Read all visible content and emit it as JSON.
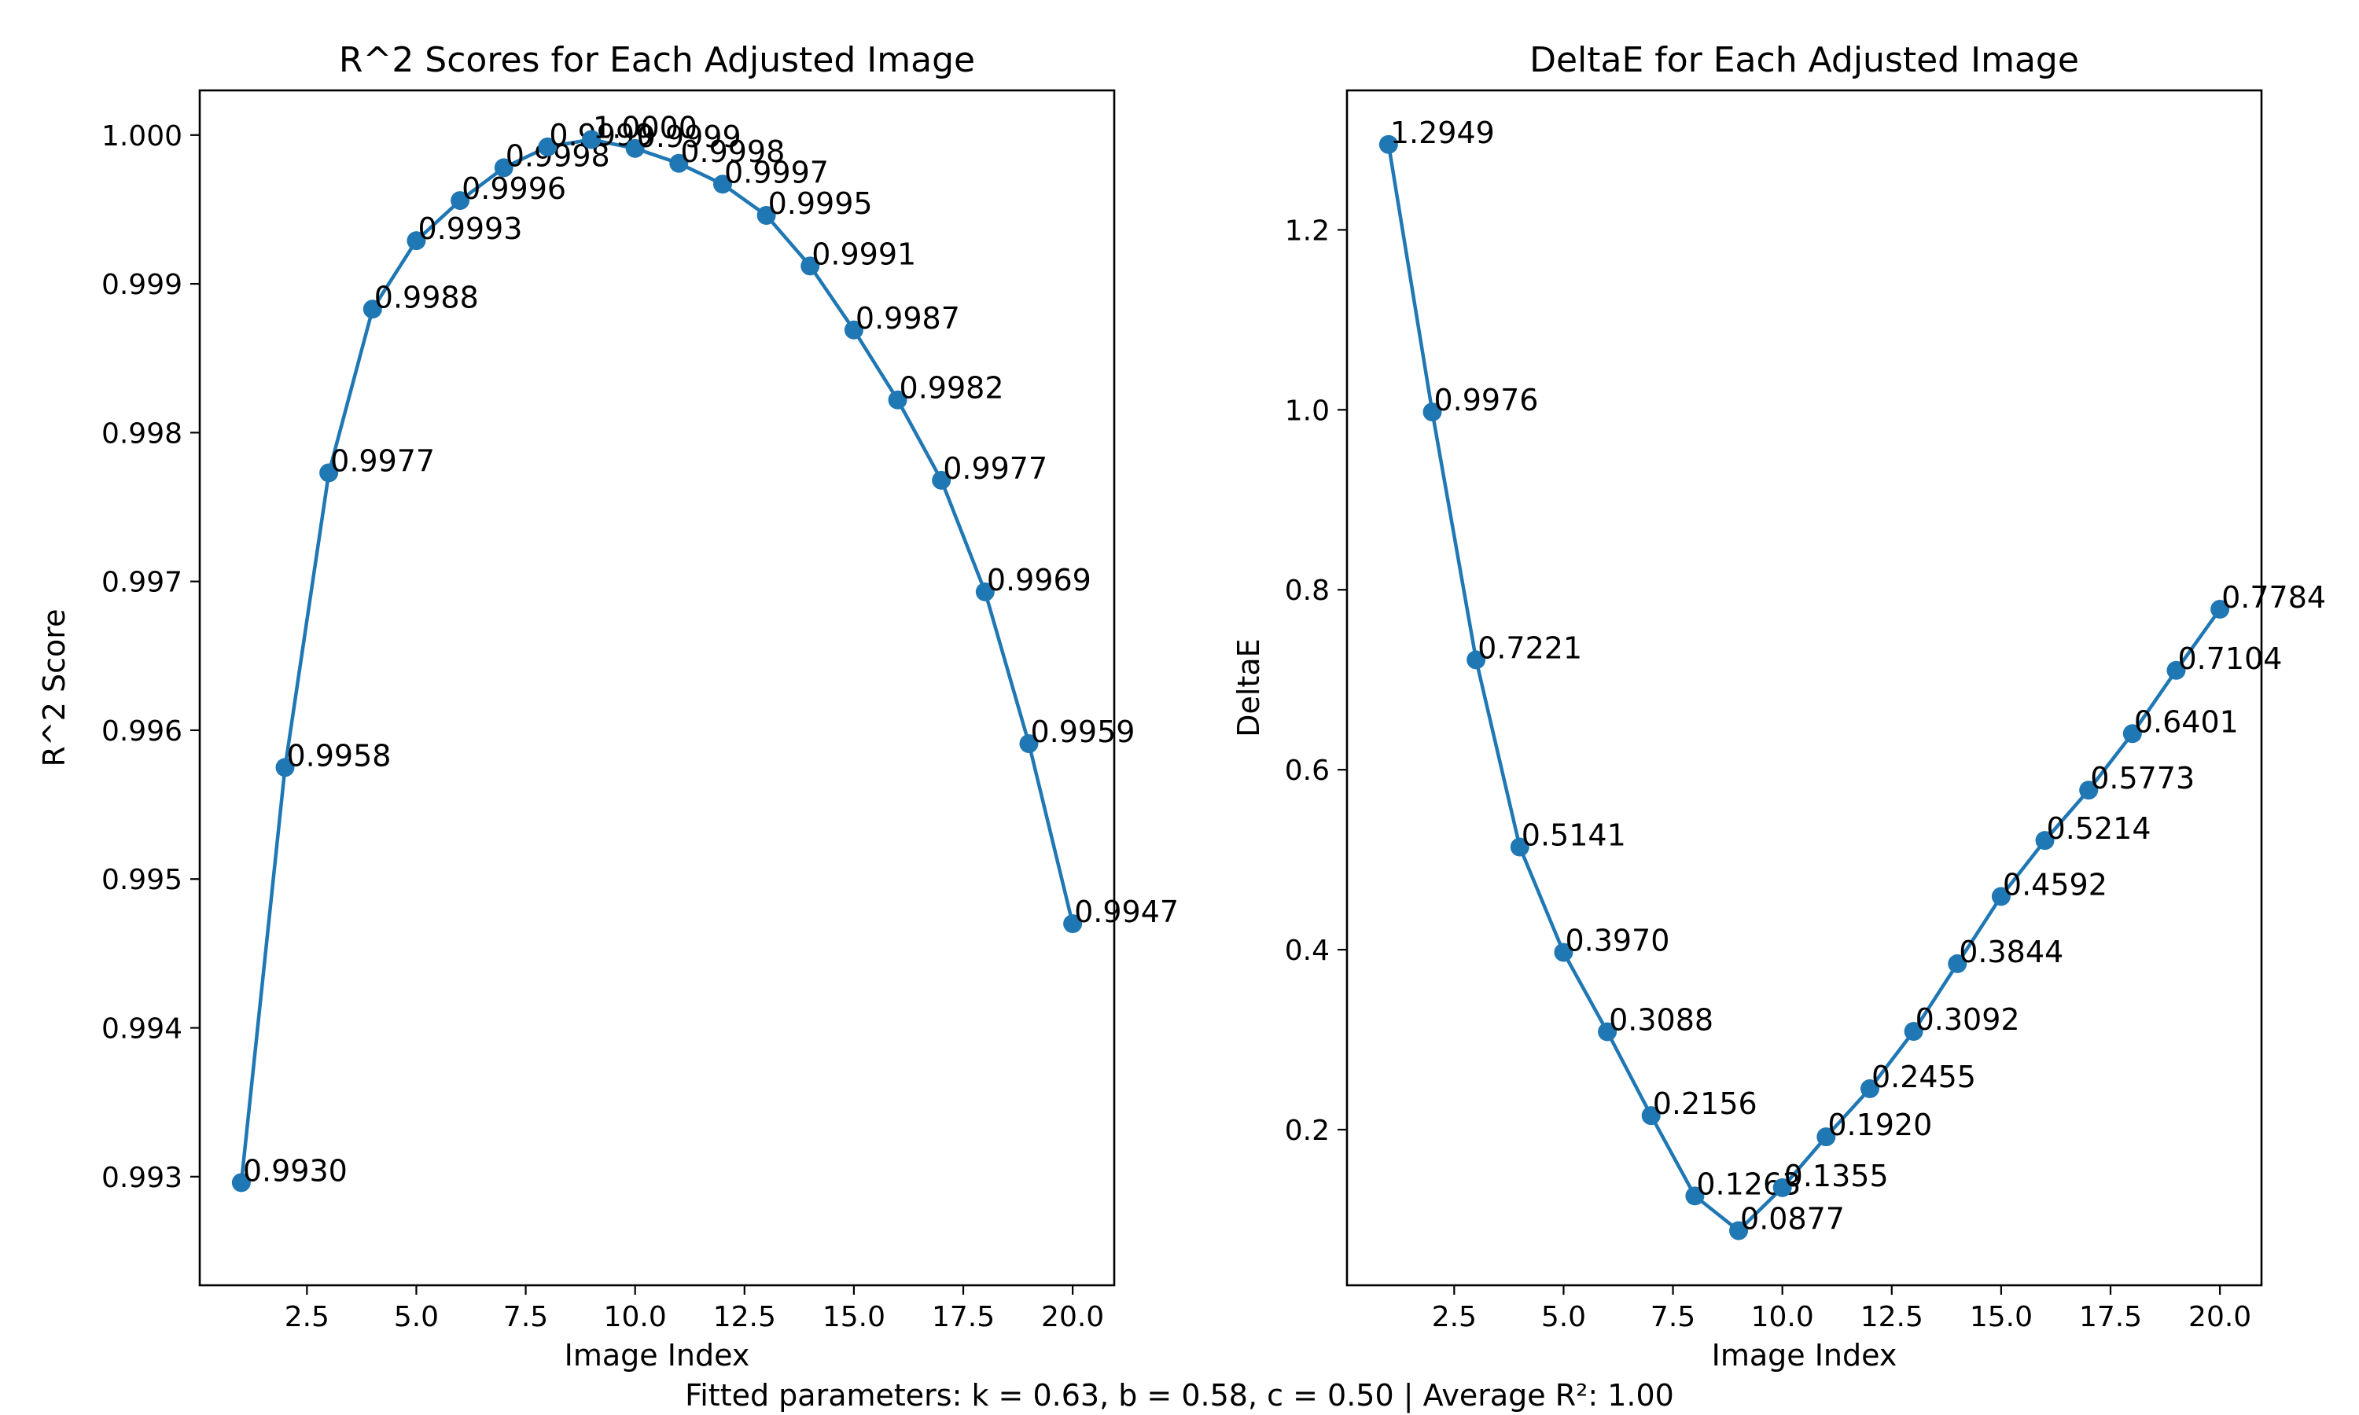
{
  "footer": "Fitted parameters: k = 0.63, b = 0.58, c = 0.50 | Average R²: 1.00",
  "colors": {
    "series": "#1f77b4"
  },
  "chart_data": [
    {
      "type": "line",
      "title": "R^2 Scores for Each Adjusted Image",
      "xlabel": "Image Index",
      "ylabel": "R^2 Score",
      "xlim": [
        0.05,
        20.95
      ],
      "ylim": [
        0.99227,
        1.0003
      ],
      "xticks": [
        2.5,
        5.0,
        7.5,
        10.0,
        12.5,
        15.0,
        17.5,
        20.0
      ],
      "xtick_labels": [
        "2.5",
        "5.0",
        "7.5",
        "10.0",
        "12.5",
        "15.0",
        "17.5",
        "20.0"
      ],
      "yticks": [
        0.993,
        0.994,
        0.995,
        0.996,
        0.997,
        0.998,
        0.999,
        1.0
      ],
      "ytick_labels": [
        "0.993",
        "0.994",
        "0.995",
        "0.996",
        "0.997",
        "0.998",
        "0.999",
        "1.000"
      ],
      "grid": false,
      "marker": "circle",
      "x": [
        1,
        2,
        3,
        4,
        5,
        6,
        7,
        8,
        9,
        10,
        11,
        12,
        13,
        14,
        15,
        16,
        17,
        18,
        19,
        20
      ],
      "values": [
        0.99296,
        0.99575,
        0.99773,
        0.99883,
        0.99929,
        0.99956,
        0.99978,
        0.99992,
        0.99997,
        0.99991,
        0.99981,
        0.99967,
        0.99946,
        0.99912,
        0.99869,
        0.99822,
        0.99768,
        0.99693,
        0.99591,
        0.9947
      ],
      "point_labels": [
        "0.9930",
        "0.9958",
        "0.9977",
        "0.9988",
        "0.9993",
        "0.9996",
        "0.9998",
        "0.9999",
        "1.0000",
        "0.9999",
        "0.9998",
        "0.9997",
        "0.9995",
        "0.9991",
        "0.9987",
        "0.9982",
        "0.9977",
        "0.9969",
        "0.9959",
        "0.9947"
      ]
    },
    {
      "type": "line",
      "title": "DeltaE for Each Adjusted Image",
      "xlabel": "Image Index",
      "ylabel": "DeltaE",
      "xlim": [
        0.05,
        20.95
      ],
      "ylim": [
        0.027,
        1.355
      ],
      "xticks": [
        2.5,
        5.0,
        7.5,
        10.0,
        12.5,
        15.0,
        17.5,
        20.0
      ],
      "xtick_labels": [
        "2.5",
        "5.0",
        "7.5",
        "10.0",
        "12.5",
        "15.0",
        "17.5",
        "20.0"
      ],
      "yticks": [
        0.2,
        0.4,
        0.6,
        0.8,
        1.0,
        1.2
      ],
      "ytick_labels": [
        "0.2",
        "0.4",
        "0.6",
        "0.8",
        "1.0",
        "1.2"
      ],
      "grid": false,
      "marker": "circle",
      "x": [
        1,
        2,
        3,
        4,
        5,
        6,
        7,
        8,
        9,
        10,
        11,
        12,
        13,
        14,
        15,
        16,
        17,
        18,
        19,
        20
      ],
      "values": [
        1.2949,
        0.9976,
        0.7221,
        0.5141,
        0.397,
        0.3088,
        0.2156,
        0.1263,
        0.0877,
        0.1355,
        0.192,
        0.2455,
        0.3092,
        0.3844,
        0.4592,
        0.5214,
        0.5773,
        0.6401,
        0.7104,
        0.7784
      ],
      "point_labels": [
        "1.2949",
        "0.9976",
        "0.7221",
        "0.5141",
        "0.3970",
        "0.3088",
        "0.2156",
        "0.1263",
        "0.0877",
        "0.1355",
        "0.1920",
        "0.2455",
        "0.3092",
        "0.3844",
        "0.4592",
        "0.5214",
        "0.5773",
        "0.6401",
        "0.7104",
        "0.7784"
      ]
    }
  ]
}
